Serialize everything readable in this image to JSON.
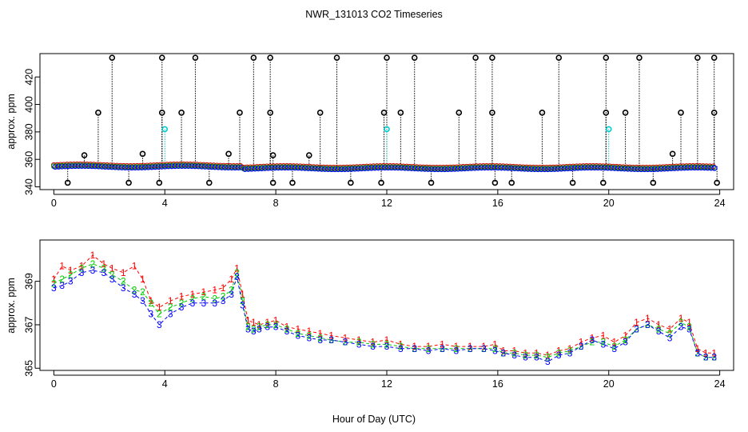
{
  "title": "NWR_131013  CO2 Timeseries",
  "xlabel": "Hour of Day (UTC)",
  "chart_data": [
    {
      "type": "scatter",
      "panel": "top",
      "ylabel": "approx. ppm",
      "xlim": [
        -0.5,
        24.5
      ],
      "ylim": [
        338,
        437
      ],
      "xticks": [
        0,
        4,
        8,
        12,
        16,
        20,
        24
      ],
      "yticks": [
        340,
        360,
        380,
        400,
        420
      ],
      "ytick_labels": [
        "340",
        "360",
        "380",
        "400",
        "420"
      ],
      "baseline": 355,
      "outliers_high": [
        {
          "x": 2.1,
          "y": 434
        },
        {
          "x": 3.9,
          "y": 434
        },
        {
          "x": 5.1,
          "y": 434
        },
        {
          "x": 7.2,
          "y": 434
        },
        {
          "x": 7.8,
          "y": 434
        },
        {
          "x": 10.2,
          "y": 434
        },
        {
          "x": 12.0,
          "y": 434
        },
        {
          "x": 13.0,
          "y": 434
        },
        {
          "x": 15.2,
          "y": 434
        },
        {
          "x": 15.8,
          "y": 434
        },
        {
          "x": 18.2,
          "y": 434
        },
        {
          "x": 19.9,
          "y": 434
        },
        {
          "x": 21.1,
          "y": 434
        },
        {
          "x": 23.2,
          "y": 434
        },
        {
          "x": 23.8,
          "y": 434
        }
      ],
      "outliers_mid": [
        {
          "x": 1.6,
          "y": 394
        },
        {
          "x": 3.9,
          "y": 394
        },
        {
          "x": 4.6,
          "y": 394
        },
        {
          "x": 6.7,
          "y": 394
        },
        {
          "x": 7.8,
          "y": 394
        },
        {
          "x": 9.6,
          "y": 394
        },
        {
          "x": 11.9,
          "y": 394
        },
        {
          "x": 12.5,
          "y": 394
        },
        {
          "x": 14.6,
          "y": 394
        },
        {
          "x": 15.8,
          "y": 394
        },
        {
          "x": 17.6,
          "y": 394
        },
        {
          "x": 19.9,
          "y": 394
        },
        {
          "x": 20.6,
          "y": 394
        },
        {
          "x": 22.6,
          "y": 394
        },
        {
          "x": 23.8,
          "y": 394
        }
      ],
      "outliers_low": [
        {
          "x": 0.5,
          "y": 343
        },
        {
          "x": 2.7,
          "y": 343
        },
        {
          "x": 3.8,
          "y": 343
        },
        {
          "x": 5.6,
          "y": 343
        },
        {
          "x": 7.9,
          "y": 343
        },
        {
          "x": 8.6,
          "y": 343
        },
        {
          "x": 10.7,
          "y": 343
        },
        {
          "x": 11.8,
          "y": 343
        },
        {
          "x": 13.6,
          "y": 343
        },
        {
          "x": 15.9,
          "y": 343
        },
        {
          "x": 16.5,
          "y": 343
        },
        {
          "x": 18.7,
          "y": 343
        },
        {
          "x": 19.8,
          "y": 343
        },
        {
          "x": 21.6,
          "y": 343
        },
        {
          "x": 23.9,
          "y": 343
        }
      ],
      "outliers_cyan": [
        {
          "x": 4.0,
          "y": 382
        },
        {
          "x": 12.0,
          "y": 382
        },
        {
          "x": 20.0,
          "y": 382
        }
      ],
      "minor_dips": [
        {
          "x": 1.1,
          "y": 363
        },
        {
          "x": 3.2,
          "y": 364
        },
        {
          "x": 6.3,
          "y": 364
        },
        {
          "x": 7.9,
          "y": 363
        },
        {
          "x": 9.2,
          "y": 363
        },
        {
          "x": 22.3,
          "y": 364
        }
      ]
    },
    {
      "type": "line",
      "panel": "bottom",
      "ylabel": "approx. ppm",
      "xlim": [
        -0.5,
        24.5
      ],
      "ylim": [
        364.9,
        370.9
      ],
      "xticks": [
        0,
        4,
        8,
        12,
        16,
        20,
        24
      ],
      "yticks": [
        365,
        367,
        369
      ],
      "ytick_labels": [
        "365",
        "367",
        "369"
      ],
      "x": [
        0,
        0.3,
        0.6,
        1.0,
        1.4,
        1.8,
        2.1,
        2.5,
        2.9,
        3.2,
        3.5,
        3.8,
        4.2,
        4.6,
        5.0,
        5.4,
        5.8,
        6.1,
        6.4,
        6.6,
        6.8,
        7.0,
        7.2,
        7.4,
        7.7,
        8.0,
        8.4,
        8.8,
        9.2,
        9.6,
        10.0,
        10.5,
        11.0,
        11.5,
        12.0,
        12.5,
        13.0,
        13.5,
        14.0,
        14.5,
        15.0,
        15.5,
        15.9,
        16.2,
        16.6,
        17.0,
        17.4,
        17.8,
        18.2,
        18.6,
        19.0,
        19.4,
        19.8,
        20.2,
        20.6,
        21.0,
        21.4,
        21.8,
        22.2,
        22.6,
        22.9,
        23.2,
        23.5,
        23.8
      ],
      "series": [
        {
          "values": [
            369.1,
            369.7,
            369.5,
            369.7,
            370.2,
            369.8,
            369.6,
            369.4,
            369.7,
            369.1,
            368.1,
            367.8,
            368.1,
            368.3,
            368.4,
            368.5,
            368.6,
            368.7,
            369.1,
            369.6,
            368.4,
            367.2,
            367.1,
            367.0,
            367.1,
            367.2,
            366.9,
            366.8,
            366.7,
            366.6,
            366.5,
            366.4,
            366.3,
            366.2,
            366.3,
            366.1,
            366.0,
            366.0,
            366.1,
            366.0,
            366.0,
            366.0,
            366.1,
            365.8,
            365.8,
            365.7,
            365.7,
            365.6,
            365.8,
            365.9,
            366.2,
            366.4,
            366.5,
            366.2,
            366.5,
            367.1,
            367.3,
            367.0,
            366.8,
            367.3,
            367.1,
            365.9,
            365.7,
            365.7
          ]
        },
        {
          "values": [
            368.9,
            369.1,
            369.3,
            369.6,
            369.8,
            369.6,
            369.3,
            369.0,
            368.6,
            368.5,
            368.0,
            367.5,
            367.8,
            368.0,
            368.2,
            368.3,
            368.2,
            368.3,
            368.6,
            369.4,
            368.1,
            366.9,
            366.8,
            366.9,
            367.0,
            367.0,
            366.8,
            366.6,
            366.5,
            366.4,
            366.3,
            366.2,
            366.2,
            366.1,
            366.1,
            366.0,
            365.9,
            365.9,
            365.9,
            365.9,
            365.9,
            365.9,
            365.9,
            365.7,
            365.7,
            365.6,
            365.6,
            365.5,
            365.7,
            365.8,
            366.0,
            366.2,
            366.2,
            366.0,
            366.3,
            366.8,
            367.0,
            366.8,
            366.6,
            367.1,
            366.9,
            365.7,
            365.5,
            365.5
          ]
        },
        {
          "values": [
            368.7,
            368.8,
            369.0,
            369.4,
            369.5,
            369.4,
            369.1,
            368.7,
            368.4,
            368.1,
            367.5,
            367.0,
            367.5,
            367.8,
            368.0,
            368.0,
            368.0,
            368.1,
            368.4,
            369.2,
            367.9,
            366.8,
            366.7,
            366.8,
            366.9,
            366.9,
            366.7,
            366.5,
            366.4,
            366.3,
            366.3,
            366.2,
            366.1,
            366.0,
            366.0,
            365.9,
            365.9,
            365.8,
            365.9,
            365.8,
            365.9,
            365.9,
            365.8,
            365.7,
            365.6,
            365.5,
            365.5,
            365.3,
            365.6,
            365.7,
            366.0,
            366.3,
            366.1,
            365.9,
            366.2,
            366.8,
            367.0,
            366.7,
            366.4,
            366.9,
            366.8,
            365.7,
            365.5,
            365.5
          ]
        }
      ],
      "colors": [
        "#ff0000",
        "#00cc00",
        "#0000ff"
      ],
      "markers": [
        "1",
        "2",
        "3"
      ]
    }
  ]
}
